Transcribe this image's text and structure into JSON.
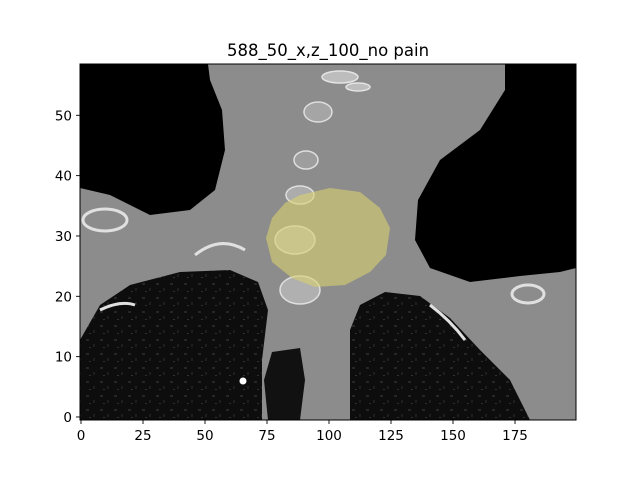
{
  "figure": {
    "title": "588_50_x,z_100_no pain"
  },
  "image": {
    "description_type": "ct-coronal-slice-with-overlay",
    "overlay_color": "#d8d070",
    "background_color": "#000000",
    "tissue_color": "#8a8a8a"
  },
  "axes": {
    "x_ticks": [
      {
        "value": 0,
        "label": "0"
      },
      {
        "value": 25,
        "label": "25"
      },
      {
        "value": 50,
        "label": "50"
      },
      {
        "value": 75,
        "label": "75"
      },
      {
        "value": 100,
        "label": "100"
      },
      {
        "value": 125,
        "label": "125"
      },
      {
        "value": 150,
        "label": "150"
      },
      {
        "value": 175,
        "label": "175"
      }
    ],
    "y_ticks": [
      {
        "value": 0,
        "label": "0"
      },
      {
        "value": 10,
        "label": "10"
      },
      {
        "value": 20,
        "label": "20"
      },
      {
        "value": 30,
        "label": "30"
      },
      {
        "value": 40,
        "label": "40"
      },
      {
        "value": 50,
        "label": "50"
      }
    ],
    "x_range": [
      0,
      199
    ],
    "y_range": [
      0,
      58
    ]
  }
}
